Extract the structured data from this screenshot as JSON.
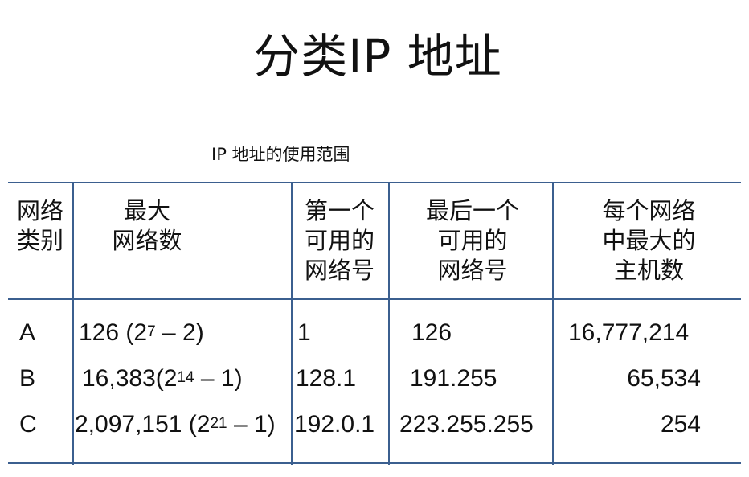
{
  "title": "分类IP 地址",
  "caption": "IP 地址的使用范围",
  "table": {
    "headers": [
      "网络\n类别",
      "最大\n网络数",
      "第一个\n可用的\n网络号",
      "最后一个\n可用的\n网络号",
      "每个网络\n中最大的\n主机数"
    ],
    "rows": [
      {
        "class": "A",
        "max_networks": "126 (2",
        "exp": "7",
        "max_networks_tail": " – 2)",
        "first": "1",
        "last": "126",
        "hosts": "16,777,214"
      },
      {
        "class": "B",
        "max_networks": "16,383(2",
        "exp": "14",
        "max_networks_tail": " – 1)",
        "first": "128.1",
        "last": "191.255",
        "hosts": "65,534"
      },
      {
        "class": "C",
        "max_networks": "2,097,151 (2",
        "exp": "21",
        "max_networks_tail": " – 1)",
        "first": "192.0.1",
        "last": "223.255.255",
        "hosts": "254"
      }
    ]
  }
}
